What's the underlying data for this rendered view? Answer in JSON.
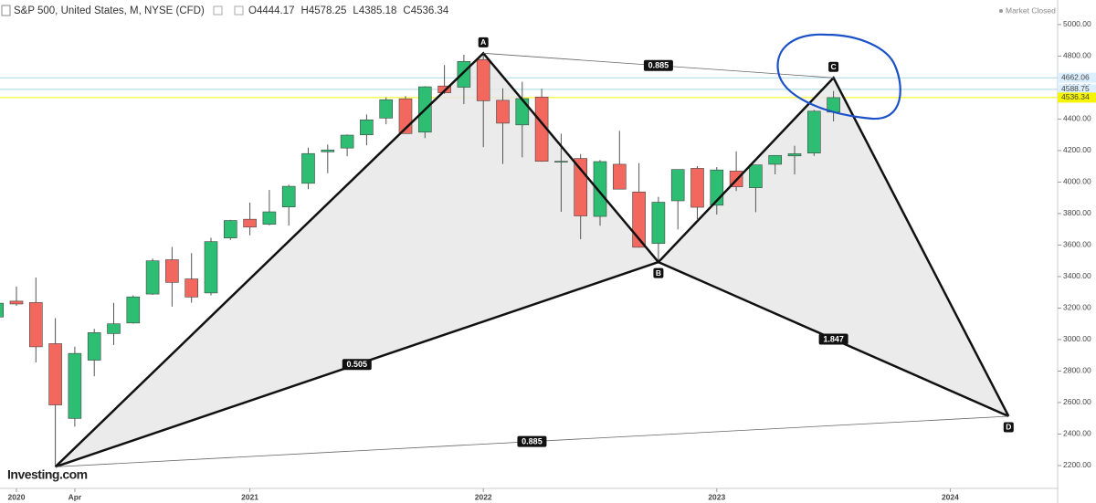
{
  "chart_data": {
    "type": "candlestick",
    "title": "S&P 500, United States, M, NYSE (CFD)",
    "status": "Market Closed",
    "logo": "Investing.com",
    "ohlc_letters": [
      "O",
      "H",
      "L",
      "C"
    ],
    "categories": [
      null,
      "2020",
      null,
      null,
      "Apr",
      null,
      null,
      null,
      null,
      null,
      null,
      null,
      null,
      "2021",
      null,
      null,
      null,
      null,
      null,
      null,
      null,
      null,
      null,
      null,
      null,
      "2022",
      null,
      null,
      null,
      null,
      null,
      null,
      null,
      null,
      null,
      null,
      null,
      "2023",
      null,
      null,
      null,
      null,
      null,
      null,
      null,
      null,
      null,
      null,
      null,
      "2024",
      null,
      null,
      null,
      null,
      null
    ],
    "open": [
      3143,
      3244,
      3235,
      2974,
      2499,
      2869,
      3038,
      3105,
      3289,
      3507,
      3385,
      3296,
      3645,
      3764,
      3732,
      3842,
      3992,
      4192,
      4216,
      4300,
      4406,
      4529,
      4317,
      4610,
      4602,
      4778,
      4519,
      4363,
      4540,
      4131,
      4150,
      3782,
      4113,
      3937,
      3610,
      3881,
      4087,
      3853,
      4070,
      3964,
      4113,
      4166,
      4184,
      4444.17,
      null,
      null,
      null,
      null,
      null,
      null,
      null,
      null,
      null,
      null,
      null
    ],
    "high": [
      3247,
      3337,
      3394,
      3136,
      2955,
      3068,
      3233,
      3280,
      3514,
      3588,
      3549,
      3646,
      3760,
      3870,
      3950,
      3983,
      4218,
      4238,
      4302,
      4429,
      4538,
      4546,
      4609,
      4743,
      4808,
      4818,
      4595,
      4637,
      4593,
      4307,
      4178,
      4140,
      4325,
      4120,
      3906,
      4080,
      4101,
      4095,
      4195,
      4111,
      4170,
      4231,
      4458,
      4578.25,
      null,
      null,
      null,
      null,
      null,
      null,
      null,
      null,
      null,
      null,
      null
    ],
    "low": [
      3070,
      3214,
      2855,
      2192,
      2447,
      2767,
      2966,
      3101,
      3284,
      3209,
      3234,
      3280,
      3633,
      3662,
      3725,
      3723,
      3955,
      4056,
      4164,
      4233,
      4367,
      4306,
      4279,
      4560,
      4495,
      4222,
      4115,
      4157,
      4129,
      3811,
      3637,
      3723,
      3955,
      3584,
      3492,
      3699,
      3765,
      3794,
      3943,
      3809,
      4049,
      4048,
      4166,
      4385.18,
      null,
      null,
      null,
      null,
      null,
      null,
      null,
      null,
      null,
      null,
      null
    ],
    "close": [
      3231,
      3226,
      2954,
      2585,
      2912,
      3044,
      3100,
      3271,
      3500,
      3363,
      3270,
      3622,
      3756,
      3714,
      3811,
      3973,
      4181,
      4204,
      4298,
      4395,
      4523,
      4308,
      4605,
      4567,
      4766,
      4516,
      4374,
      4530,
      4132,
      4132,
      3785,
      4130,
      3955,
      3586,
      3872,
      4080,
      3840,
      4077,
      3970,
      4109,
      4169,
      4180,
      4450,
      4536.34,
      null,
      null,
      null,
      null,
      null,
      null,
      null,
      null,
      null,
      null,
      null
    ],
    "up_color": "#2dbd73",
    "down_color": "#f2675e",
    "ylim": [
      2055,
      5156
    ],
    "yticks": [
      {
        "value": 2200,
        "label": "2200.00"
      },
      {
        "value": 2400,
        "label": "2400.00"
      },
      {
        "value": 2600,
        "label": "2600.00"
      },
      {
        "value": 2800,
        "label": "2800.00"
      },
      {
        "value": 3000,
        "label": "3000.00"
      },
      {
        "value": 3200,
        "label": "3200.00"
      },
      {
        "value": 3400,
        "label": "3400.00"
      },
      {
        "value": 3600,
        "label": "3600.00"
      },
      {
        "value": 3800,
        "label": "3800.00"
      },
      {
        "value": 4000,
        "label": "4000.00"
      },
      {
        "value": 4200,
        "label": "4200.00"
      },
      {
        "value": 4400,
        "label": "4400.00"
      },
      {
        "value": 4600,
        "label": "4600.00"
      },
      {
        "value": 4800,
        "label": "4800.00"
      },
      {
        "value": 5000,
        "label": "5000.00"
      }
    ],
    "price_lines": [
      {
        "value": 4662.06,
        "color": "#a9d8e8"
      },
      {
        "value": 4588.75,
        "color": "#a9d8e8"
      }
    ],
    "last_price_color": "#f5f500",
    "pattern": {
      "points": [
        {
          "label": null,
          "index": 3,
          "value": 2192
        },
        {
          "label": "A",
          "index": 25,
          "value": 4818
        },
        {
          "label": "B",
          "index": 34,
          "value": 3492
        },
        {
          "label": "C",
          "index": 43,
          "value": 4662.06
        },
        {
          "label": "D",
          "index": 52,
          "value": 2513
        }
      ],
      "lines": [
        {
          "points": [
            1,
            3
          ],
          "ratio": 0.885,
          "style": "thin"
        },
        {
          "points": [
            0,
            2
          ],
          "ratio": 0.505,
          "style": "thick"
        },
        {
          "points": [
            2,
            4
          ],
          "ratio": 1.847,
          "style": "thick"
        },
        {
          "points": [
            0,
            4
          ],
          "ratio": 0.885,
          "style": "thin"
        }
      ]
    }
  }
}
